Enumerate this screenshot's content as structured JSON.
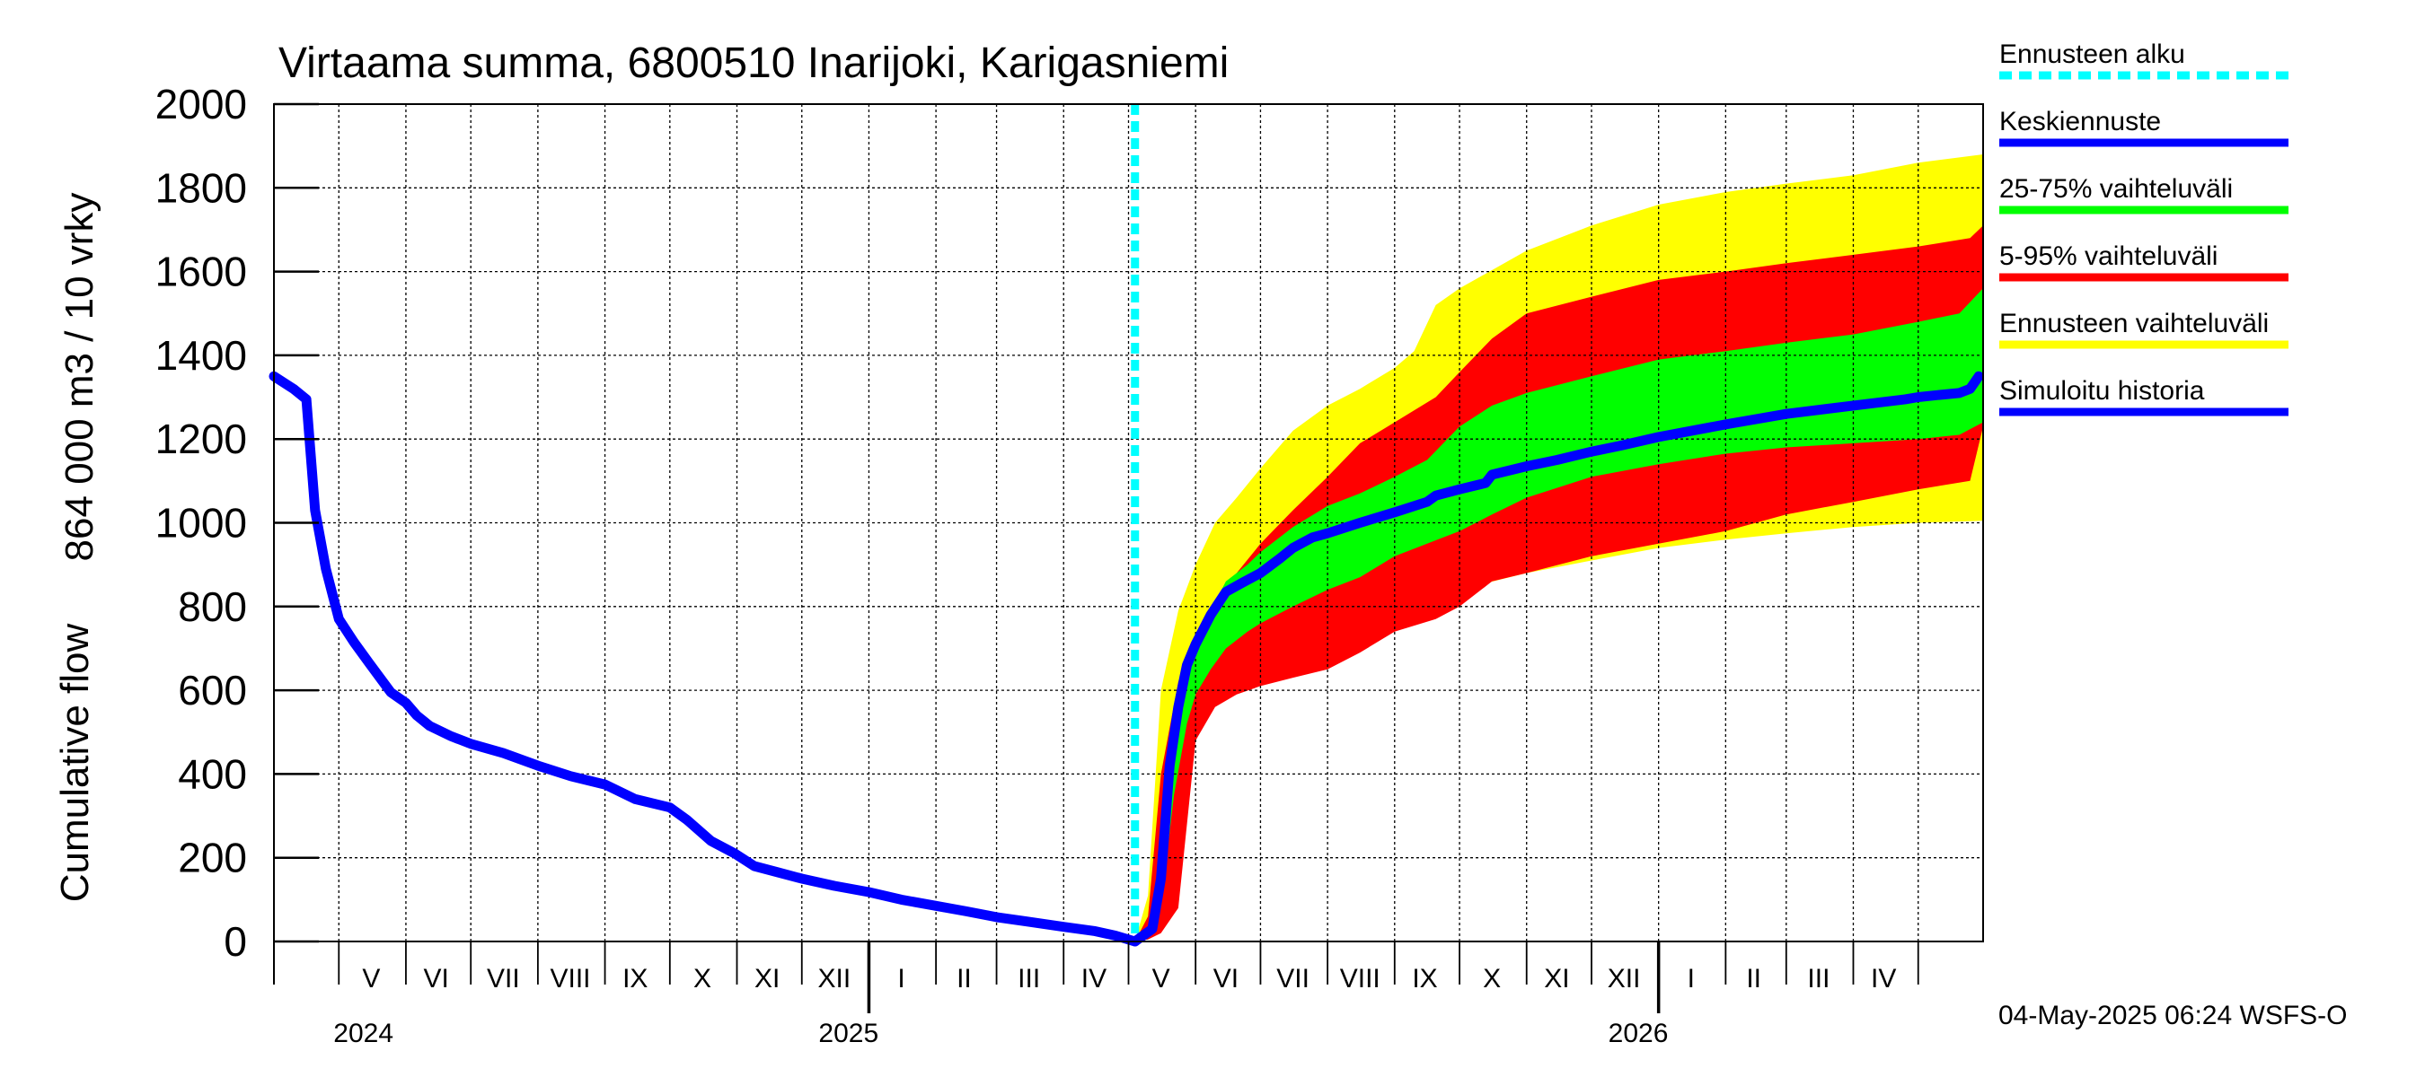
{
  "chart_data": {
    "type": "area",
    "title": "Virtaama summa, 6800510 Inarijoki, Karigasniemi",
    "ylabel_line1": "Cumulative flow",
    "ylabel_line2": "864 000 m3 / 10 vrky",
    "ylim": [
      0,
      2000
    ],
    "y_ticks": [
      0,
      200,
      400,
      600,
      800,
      1000,
      1200,
      1400,
      1600,
      1800,
      2000
    ],
    "y_tick_labels": [
      "0",
      "200",
      "400",
      "600",
      "800",
      "1000",
      "1200",
      "1400",
      "1600",
      "1800",
      "2000"
    ],
    "grid": true,
    "x_range": [
      "2024-04-01",
      "2026-05-31"
    ],
    "forecast_start": "2025-05-04",
    "month_labels": [
      {
        "label": "V",
        "date": "2024-05-16"
      },
      {
        "label": "VI",
        "date": "2024-06-15"
      },
      {
        "label": "VII",
        "date": "2024-07-16"
      },
      {
        "label": "VIII",
        "date": "2024-08-16"
      },
      {
        "label": "IX",
        "date": "2024-09-15"
      },
      {
        "label": "X",
        "date": "2024-10-16"
      },
      {
        "label": "XI",
        "date": "2024-11-15"
      },
      {
        "label": "XII",
        "date": "2024-12-16"
      },
      {
        "label": "I",
        "date": "2025-01-16"
      },
      {
        "label": "II",
        "date": "2025-02-14"
      },
      {
        "label": "III",
        "date": "2025-03-16"
      },
      {
        "label": "IV",
        "date": "2025-04-15"
      },
      {
        "label": "V",
        "date": "2025-05-16"
      },
      {
        "label": "VI",
        "date": "2025-06-15"
      },
      {
        "label": "VII",
        "date": "2025-07-16"
      },
      {
        "label": "VIII",
        "date": "2025-08-16"
      },
      {
        "label": "IX",
        "date": "2025-09-15"
      },
      {
        "label": "X",
        "date": "2025-10-16"
      },
      {
        "label": "XI",
        "date": "2025-11-15"
      },
      {
        "label": "XII",
        "date": "2025-12-16"
      },
      {
        "label": "I",
        "date": "2026-01-16"
      },
      {
        "label": "II",
        "date": "2026-02-14"
      },
      {
        "label": "III",
        "date": "2026-03-16"
      },
      {
        "label": "IV",
        "date": "2026-04-15"
      }
    ],
    "year_labels": [
      {
        "label": "2024",
        "date": "2024-05-01"
      },
      {
        "label": "2025",
        "date": "2025-01-01"
      },
      {
        "label": "2026",
        "date": "2026-01-01"
      }
    ],
    "series": [
      {
        "name": "Simuloitu historia",
        "color": "#0000ff",
        "x": [
          "2024-04-01",
          "2024-04-10",
          "2024-04-16",
          "2024-04-20",
          "2024-04-25",
          "2024-05-01",
          "2024-05-08",
          "2024-05-15",
          "2024-05-25",
          "2024-06-01",
          "2024-06-06",
          "2024-06-12",
          "2024-06-22",
          "2024-07-01",
          "2024-07-16",
          "2024-08-01",
          "2024-08-16",
          "2024-09-01",
          "2024-09-15",
          "2024-10-01",
          "2024-10-09",
          "2024-10-20",
          "2024-10-31",
          "2024-11-09",
          "2024-11-20",
          "2024-12-01",
          "2024-12-16",
          "2025-01-01",
          "2025-01-16",
          "2025-02-01",
          "2025-02-15",
          "2025-03-01",
          "2025-03-16",
          "2025-04-01",
          "2025-04-15",
          "2025-04-25",
          "2025-05-04"
        ],
        "values": [
          1350,
          1320,
          1295,
          1030,
          890,
          770,
          715,
          665,
          595,
          570,
          540,
          515,
          490,
          472,
          450,
          420,
          395,
          375,
          340,
          320,
          290,
          240,
          210,
          180,
          165,
          150,
          133,
          118,
          100,
          85,
          72,
          58,
          47,
          35,
          25,
          14,
          0
        ]
      },
      {
        "name": "Keskiennuste",
        "color": "#0000ff",
        "x": [
          "2025-05-04",
          "2025-05-12",
          "2025-05-16",
          "2025-05-20",
          "2025-05-24",
          "2025-05-28",
          "2025-06-01",
          "2025-06-08",
          "2025-06-15",
          "2025-06-22",
          "2025-07-01",
          "2025-07-10",
          "2025-07-16",
          "2025-07-25",
          "2025-08-01",
          "2025-08-16",
          "2025-09-01",
          "2025-09-16",
          "2025-09-20",
          "2025-10-01",
          "2025-10-13",
          "2025-10-16",
          "2025-11-01",
          "2025-11-15",
          "2025-12-01",
          "2025-12-15",
          "2026-01-01",
          "2026-02-01",
          "2026-03-01",
          "2026-04-01",
          "2026-04-25",
          "2026-05-01",
          "2026-05-10",
          "2026-05-20",
          "2026-05-25",
          "2026-05-29"
        ],
        "values": [
          0,
          30,
          150,
          420,
          560,
          660,
          710,
          780,
          835,
          855,
          880,
          915,
          940,
          965,
          975,
          1000,
          1025,
          1050,
          1065,
          1080,
          1095,
          1115,
          1135,
          1150,
          1170,
          1185,
          1205,
          1235,
          1260,
          1280,
          1295,
          1300,
          1305,
          1310,
          1320,
          1350
        ]
      }
    ],
    "bands": [
      {
        "name": "Ennusteen vaihteluväli",
        "color": "#ffff00",
        "x": [
          "2025-05-04",
          "2025-05-10",
          "2025-05-16",
          "2025-05-24",
          "2025-06-01",
          "2025-06-10",
          "2025-06-20",
          "2025-07-01",
          "2025-07-16",
          "2025-08-01",
          "2025-08-16",
          "2025-09-01",
          "2025-09-10",
          "2025-09-20",
          "2025-10-01",
          "2025-11-01",
          "2025-12-01",
          "2026-01-01",
          "2026-02-01",
          "2026-03-01",
          "2026-04-01",
          "2026-05-01",
          "2026-05-31"
        ],
        "upper": [
          0,
          110,
          600,
          790,
          900,
          1000,
          1060,
          1130,
          1220,
          1280,
          1320,
          1370,
          1410,
          1520,
          1560,
          1650,
          1710,
          1760,
          1790,
          1810,
          1830,
          1860,
          1880
        ],
        "lower": [
          0,
          5,
          30,
          200,
          580,
          600,
          620,
          640,
          660,
          700,
          730,
          755,
          780,
          820,
          840,
          880,
          910,
          940,
          960,
          975,
          990,
          1000,
          1005
        ]
      },
      {
        "name": "5-95% vaihteluväli",
        "color": "#ff0000",
        "x": [
          "2025-05-04",
          "2025-05-10",
          "2025-05-16",
          "2025-05-24",
          "2025-06-01",
          "2025-06-10",
          "2025-06-20",
          "2025-07-01",
          "2025-07-16",
          "2025-08-01",
          "2025-08-16",
          "2025-09-01",
          "2025-09-20",
          "2025-10-01",
          "2025-10-16",
          "2025-11-01",
          "2025-12-01",
          "2026-01-01",
          "2026-02-01",
          "2026-03-01",
          "2026-04-01",
          "2026-05-01",
          "2026-05-25",
          "2026-05-31"
        ],
        "upper": [
          0,
          60,
          400,
          620,
          730,
          810,
          880,
          950,
          1030,
          1110,
          1190,
          1240,
          1300,
          1360,
          1440,
          1500,
          1540,
          1580,
          1600,
          1620,
          1640,
          1660,
          1680,
          1710
        ],
        "lower": [
          0,
          5,
          20,
          80,
          480,
          560,
          590,
          610,
          630,
          650,
          690,
          740,
          770,
          800,
          860,
          880,
          920,
          950,
          980,
          1020,
          1050,
          1080,
          1100,
          1230
        ]
      },
      {
        "name": "25-75% vaihteluväli",
        "color": "#00ff00",
        "x": [
          "2025-05-04",
          "2025-05-12",
          "2025-05-16",
          "2025-05-22",
          "2025-05-28",
          "2025-06-01",
          "2025-06-08",
          "2025-06-15",
          "2025-06-25",
          "2025-07-01",
          "2025-07-16",
          "2025-08-01",
          "2025-08-16",
          "2025-09-01",
          "2025-09-16",
          "2025-10-01",
          "2025-10-16",
          "2025-11-01",
          "2025-12-01",
          "2026-01-01",
          "2026-02-01",
          "2026-03-01",
          "2026-04-01",
          "2026-05-01",
          "2026-05-20",
          "2026-05-31"
        ],
        "upper": [
          0,
          40,
          200,
          520,
          690,
          730,
          790,
          860,
          900,
          930,
          990,
          1040,
          1070,
          1110,
          1150,
          1230,
          1280,
          1310,
          1350,
          1390,
          1410,
          1430,
          1450,
          1480,
          1500,
          1560
        ],
        "lower": [
          0,
          20,
          80,
          350,
          520,
          590,
          650,
          700,
          740,
          760,
          800,
          840,
          870,
          920,
          950,
          980,
          1020,
          1060,
          1110,
          1140,
          1165,
          1180,
          1190,
          1200,
          1210,
          1240
        ]
      }
    ],
    "legend": [
      {
        "label": "Ennusteen alku",
        "color": "#00ffff",
        "style": "dashed"
      },
      {
        "label": "Keskiennuste",
        "color": "#0000ff",
        "style": "solid"
      },
      {
        "label": "25-75% vaihteluväli",
        "color": "#00ff00",
        "style": "solid"
      },
      {
        "label": "5-95% vaihteluväli",
        "color": "#ff0000",
        "style": "solid"
      },
      {
        "label": "Ennusteen vaihteluväli",
        "color": "#ffff00",
        "style": "solid"
      },
      {
        "label": "Simuloitu historia",
        "color": "#0000ff",
        "style": "solid"
      }
    ],
    "legend_position": "right"
  },
  "footer": {
    "timestamp": "04-May-2025 06:24 WSFS-O"
  }
}
